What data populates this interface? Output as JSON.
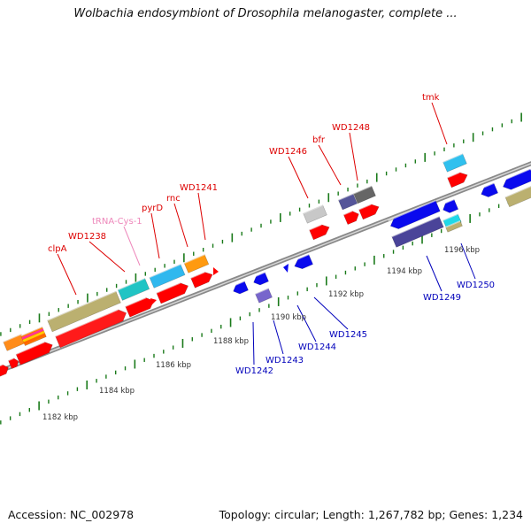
{
  "title": "Wolbachia endosymbiont of Drosophila melanogaster, complete ...",
  "footer": {
    "accession": "Accession: NC_002978",
    "summary": "Topology: circular; Length: 1,267,782 bp; Genes: 1,234"
  },
  "colors": {
    "forward_label": "#dd0000",
    "reverse_label": "#0000bb",
    "trna_label": "#ee88bb",
    "tick": "#1a7a1a",
    "backbone": "#8a8a8a"
  },
  "ruler_labels": [
    "1182 kbp",
    "1184 kbp",
    "1186 kbp",
    "1188 kbp",
    "1190 kbp",
    "1192 kbp",
    "1194 kbp",
    "1196 kbp"
  ],
  "gene_labels": [
    {
      "text": "clpA",
      "strand": "forward"
    },
    {
      "text": "WD1238",
      "strand": "forward"
    },
    {
      "text": "tRNA-Cys-1",
      "strand": "trna"
    },
    {
      "text": "pyrD",
      "strand": "forward"
    },
    {
      "text": "rnc",
      "strand": "forward"
    },
    {
      "text": "WD1241",
      "strand": "forward"
    },
    {
      "text": "WD1246",
      "strand": "forward"
    },
    {
      "text": "bfr",
      "strand": "forward"
    },
    {
      "text": "WD1248",
      "strand": "forward"
    },
    {
      "text": "tmk",
      "strand": "forward"
    },
    {
      "text": "WD1242",
      "strand": "reverse"
    },
    {
      "text": "WD1243",
      "strand": "reverse"
    },
    {
      "text": "WD1244",
      "strand": "reverse"
    },
    {
      "text": "WD1245",
      "strand": "reverse"
    },
    {
      "text": "WD1249",
      "strand": "reverse"
    },
    {
      "text": "WD1250",
      "strand": "reverse"
    }
  ]
}
